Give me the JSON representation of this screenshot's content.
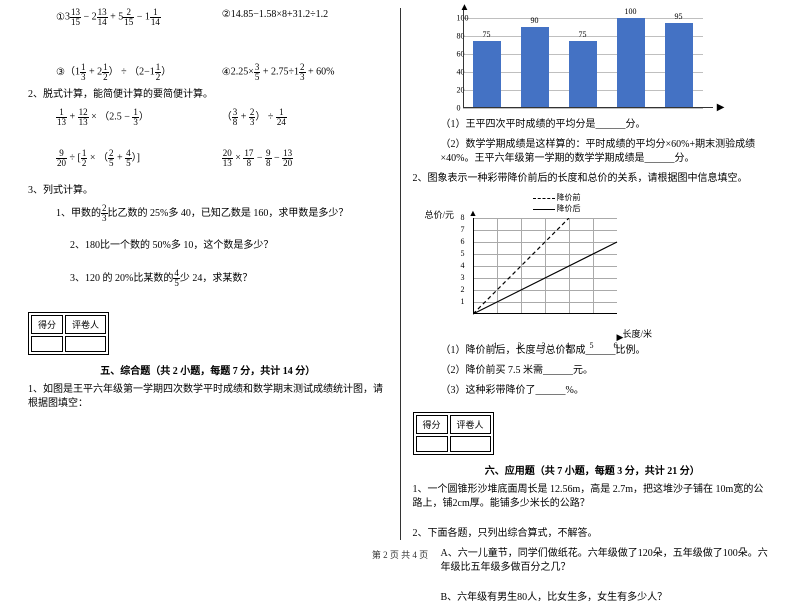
{
  "left": {
    "q1a": {
      "circ": "①",
      "expr_parts": [
        "3",
        "13",
        "15",
        " − 2",
        "13",
        "14",
        " + 5",
        "2",
        "15",
        " − 1",
        "1",
        "14"
      ]
    },
    "q1b": "②14.85−1.58×8+31.2÷1.2",
    "q3a": {
      "circ": "③",
      "parts": [
        "（1",
        "1",
        "3",
        " + 2",
        "1",
        "2",
        "） ÷ （2−1",
        "1",
        "2",
        "）"
      ]
    },
    "q3b": {
      "circ": "④",
      "parts": [
        "2.25×",
        "3",
        "5",
        " + 2.75÷1",
        "2",
        "3",
        " + 60%"
      ]
    },
    "p2": "2、脱式计算，能简便计算的要简便计算。",
    "p2a": {
      "parts": [
        "",
        "1",
        "13",
        " + ",
        "12",
        "13",
        " × （2.5 − ",
        "1",
        "3",
        "）"
      ]
    },
    "p2b": {
      "parts": [
        "（",
        "3",
        "8",
        " + ",
        "2",
        "3",
        "） ÷ ",
        "1",
        "24"
      ]
    },
    "p2c": {
      "parts": [
        "",
        "9",
        "20",
        " ÷ [",
        "1",
        "2",
        " × （",
        "2",
        "5",
        " + ",
        "4",
        "5",
        "）]"
      ]
    },
    "p2d": {
      "parts": [
        "",
        "20",
        "13",
        " × ",
        "17",
        "8",
        " − ",
        "9",
        "8",
        " − ",
        "13",
        "20"
      ]
    },
    "p3": "3、列式计算。",
    "p3_1": {
      "pre": "1、甲数的",
      "n": "2",
      "d": "3",
      "post": "比乙数的 25%多 40，已知乙数是 160，求甲数是多少？"
    },
    "p3_2": "2、180比一个数的 50%多 10，这个数是多少？",
    "p3_3": {
      "pre": "3、120 的 20%比某数的",
      "n": "4",
      "d": "5",
      "post": "少 24，求某数？"
    },
    "score_h1": "得分",
    "score_h2": "评卷人",
    "sec5": "五、综合题（共 2 小题，每题 7 分，共计 14 分）",
    "sec5_1": "1、如图是王平六年级第一学期四次数学平时成绩和数学期末测试成绩统计图，请根据图填空："
  },
  "chart": {
    "ymax": 100,
    "ystep": 20,
    "yticks": [
      0,
      20,
      40,
      60,
      80,
      100
    ],
    "bars": [
      {
        "v": 75,
        "lab": "75"
      },
      {
        "v": 90,
        "lab": "90"
      },
      {
        "v": 75,
        "lab": "75"
      },
      {
        "v": 100,
        "lab": "100"
      },
      {
        "v": 95,
        "lab": "95"
      }
    ],
    "bar_color": "#4472c4",
    "grid_color": "#bfbfbf"
  },
  "right": {
    "c1": "（1）王平四次平时成绩的平均分是______分。",
    "c2": "（2）数学学期成绩是这样算的：平时成绩的平均分×60%+期末测验成绩×40%。王平六年级第一学期的数学学期成绩是______分。",
    "line_intro": "2、图象表示一种彩带降价前后的长度和总价的关系，请根据图中信息填空。",
    "legend1": "降价前",
    "legend2": "降价后",
    "ylabel": "总价/元",
    "xlabel": "长度/米",
    "yticks2": [
      1,
      2,
      3,
      4,
      5,
      6,
      7,
      8
    ],
    "xticks2": [
      1,
      2,
      3,
      4,
      5,
      6
    ],
    "l1": "（1）降价前后，长度与总价都成______比例。",
    "l2": "（2）降价前买 7.5 米需______元。",
    "l3": "（3）这种彩带降价了______%。",
    "score_h1": "得分",
    "score_h2": "评卷人",
    "sec6": "六、应用题（共 7 小题，每题 3 分，共计 21 分）",
    "q6_1": "1、一个圆锥形沙堆底面周长是 12.56m，高是 2.7m，把这堆沙子铺在 10m宽的公路上，铺2cm厚。能铺多少米长的公路？",
    "q6_2": "2、下面各题，只列出综合算式，不解答。",
    "q6_2a": "A、六一儿童节，同学们做纸花。六年级做了120朵，五年级做了100朵。六年级比五年级多做百分之几？",
    "q6_2b": "B、六年级有男生80人，比女生多，女生有多少人？"
  },
  "footer": "第 2 页 共 4 页"
}
